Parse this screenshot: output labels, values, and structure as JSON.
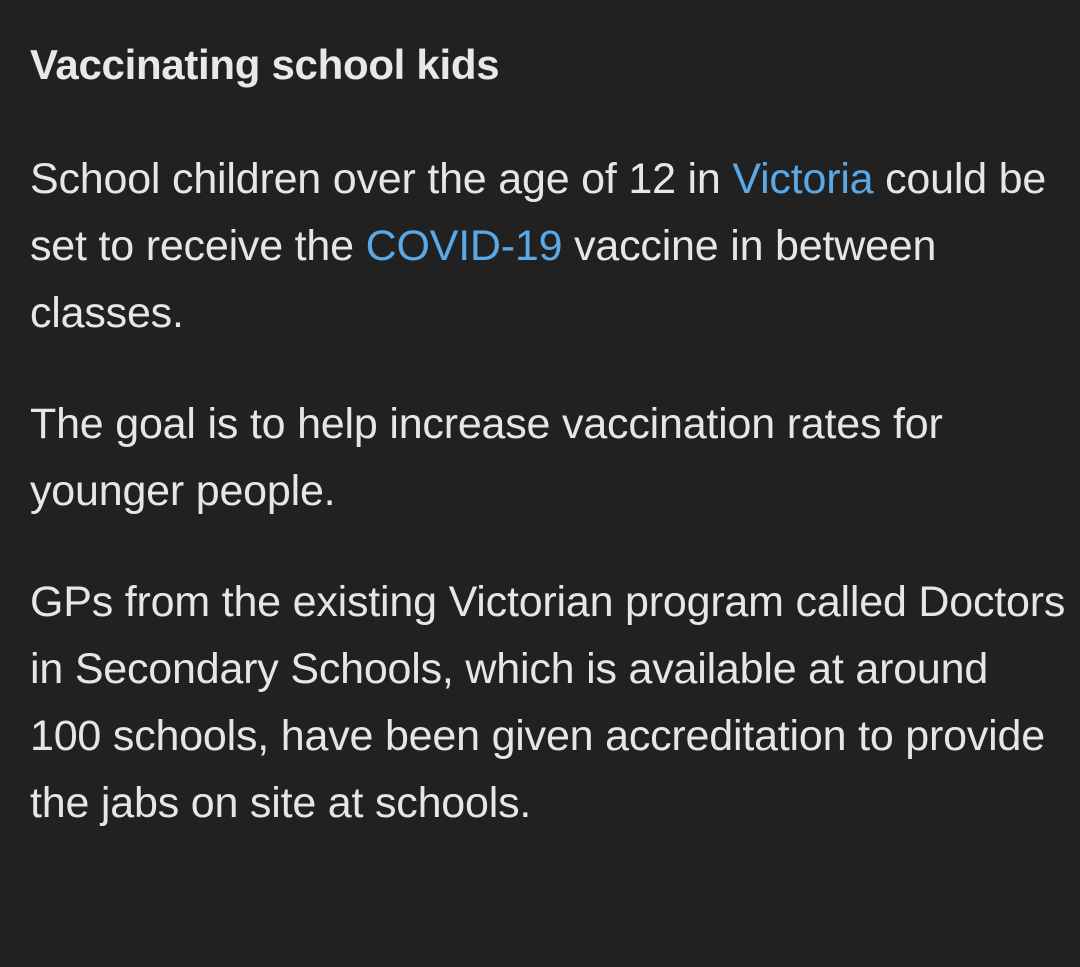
{
  "article": {
    "heading": "Vaccinating school kids",
    "paragraph1": {
      "text_before_link1": "School children over the age of 12 in ",
      "link1": "Victoria",
      "text_middle": " could be set to receive the ",
      "link2": "COVID-19",
      "text_after_link2": " vaccine in between classes."
    },
    "paragraph2": "The goal is to help increase vaccination rates for younger people.",
    "paragraph3": "GPs from the existing Victorian program called Doctors in Secondary Schools, which is available at around 100 schools, have been given accreditation to provide the jabs on site at schools."
  },
  "colors": {
    "background": "#212121",
    "text": "#e6e6e6",
    "link": "#5aa8e6"
  }
}
